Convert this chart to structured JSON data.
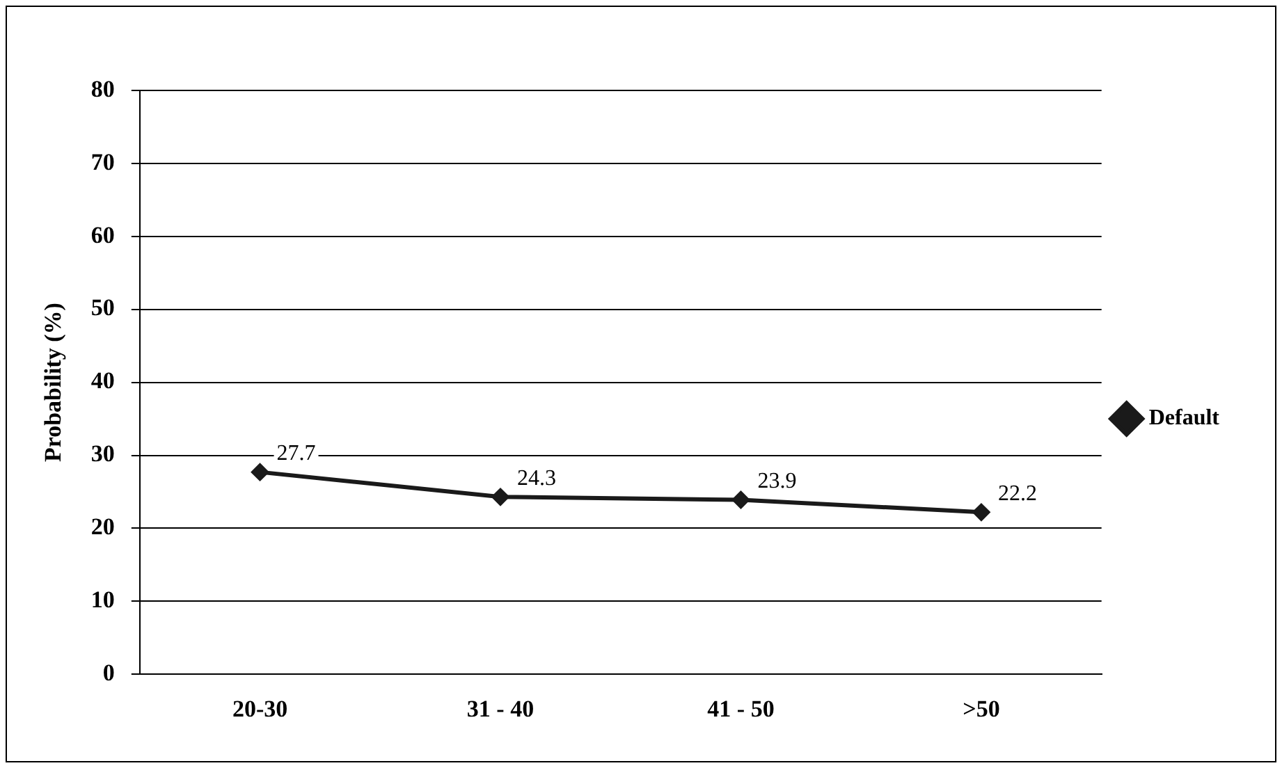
{
  "chart_data": {
    "type": "line",
    "ylabel": "Probability (%)",
    "categories": [
      "20-30",
      "31 - 40",
      "41 - 50",
      ">50"
    ],
    "series": [
      {
        "name": "Default",
        "color": "#1a1a1a",
        "values": [
          27.7,
          24.3,
          23.9,
          22.2
        ]
      }
    ],
    "ylim": [
      0,
      80
    ],
    "yticks": [
      0,
      10,
      20,
      30,
      40,
      50,
      60,
      70,
      80
    ],
    "grid": "y",
    "legend": "right",
    "marker": "diamond",
    "line_style": "solid",
    "data_labels": true
  }
}
